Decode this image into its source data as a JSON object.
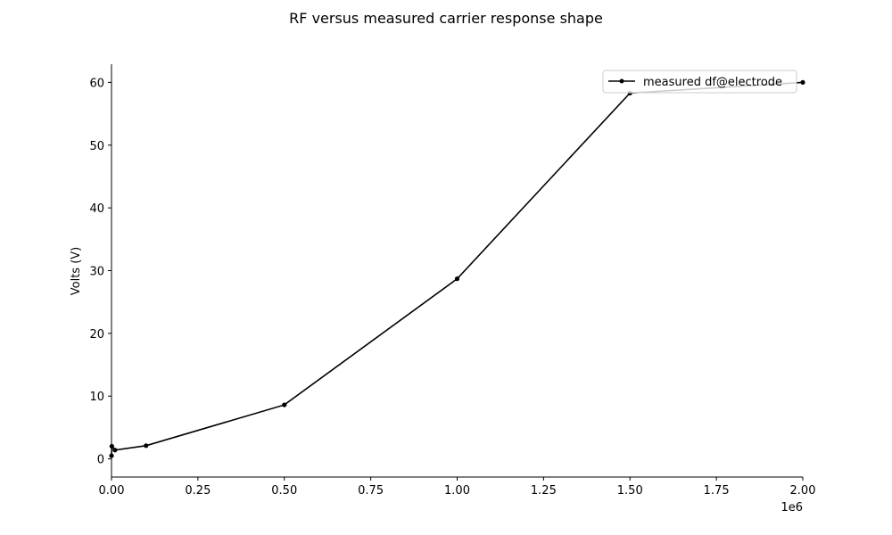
{
  "chart_data": {
    "type": "line",
    "title": "RF versus measured carrier response shape",
    "xlabel": "",
    "ylabel": "Volts (V)",
    "x_offset_label": "1e6",
    "xlim": [
      0,
      2000000
    ],
    "ylim": [
      -2.9,
      62.9
    ],
    "x_ticks": [
      0,
      250000,
      500000,
      750000,
      1000000,
      1250000,
      1500000,
      1750000,
      2000000
    ],
    "x_tick_labels": [
      "0.00",
      "0.25",
      "0.50",
      "0.75",
      "1.00",
      "1.25",
      "1.50",
      "1.75",
      "2.00"
    ],
    "y_ticks": [
      0,
      10,
      20,
      30,
      40,
      50,
      60
    ],
    "y_tick_labels": [
      "0",
      "10",
      "20",
      "30",
      "40",
      "50",
      "60"
    ],
    "grid": false,
    "legend_position": "top-right",
    "series": [
      {
        "name": "measured df@electrode",
        "color": "#000000",
        "marker": "circle",
        "x": [
          100,
          1000,
          10000,
          100000,
          500000,
          1000000,
          1500000,
          2000000
        ],
        "y": [
          0.5,
          2.0,
          1.4,
          2.1,
          8.6,
          28.7,
          58.3,
          60.0
        ]
      }
    ]
  }
}
